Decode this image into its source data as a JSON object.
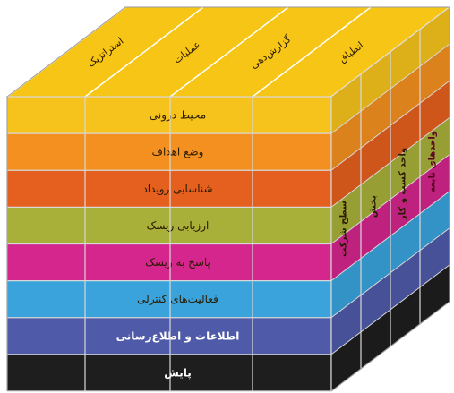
{
  "diagram": {
    "top_objectives": [
      {
        "label": "استراتژیک"
      },
      {
        "label": "عملیات"
      },
      {
        "label": "گزارش‌دهی"
      },
      {
        "label": "انطباق"
      }
    ],
    "components": [
      {
        "label": "محیط درونی",
        "color": "#f6c21c"
      },
      {
        "label": "وضع اهداف",
        "color": "#f39020"
      },
      {
        "label": "شناسایی رویداد",
        "color": "#e5601e"
      },
      {
        "label": "ارزیابی ریسک",
        "color": "#a8b03a"
      },
      {
        "label": "پاسخ به ریسک",
        "color": "#d4268c"
      },
      {
        "label": "فعالیت‌های کنترلی",
        "color": "#3aa3dc"
      },
      {
        "label": "اطلاعات و اطلاع‌رسانی",
        "color": "#4f5aa8"
      },
      {
        "label": "پایش",
        "color": "#1e1e1e"
      }
    ],
    "side_units": [
      {
        "label": "سطح شرکت"
      },
      {
        "label": "بخش"
      },
      {
        "label": "واحد کسب و کار"
      },
      {
        "label": "واحدهای تابعه"
      }
    ]
  }
}
